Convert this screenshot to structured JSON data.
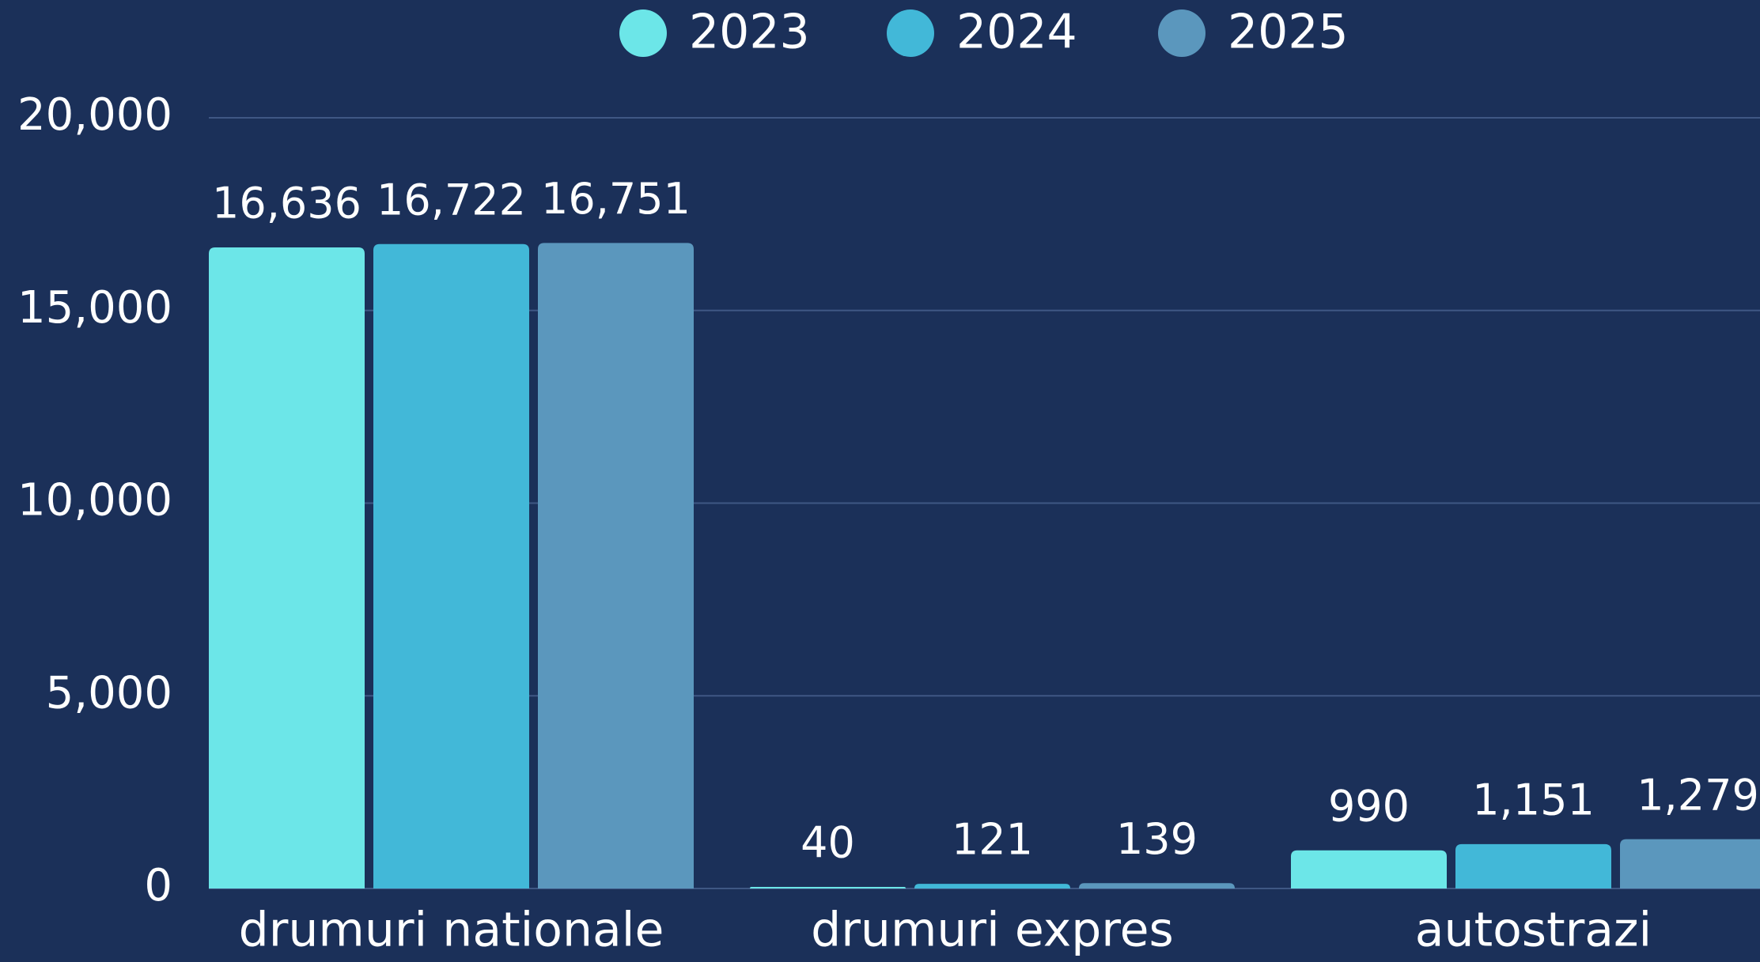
{
  "chart_data": {
    "type": "bar",
    "categories": [
      "drumuri nationale",
      "drumuri expres",
      "autostrazi"
    ],
    "series": [
      {
        "name": "2023",
        "color": "#6ce6e8",
        "values": [
          16636,
          40,
          990
        ],
        "value_labels": [
          "16,636",
          "40",
          "990"
        ]
      },
      {
        "name": "2024",
        "color": "#42b8d8",
        "values": [
          16722,
          121,
          1151
        ],
        "value_labels": [
          "16,722",
          "121",
          "1,151"
        ]
      },
      {
        "name": "2025",
        "color": "#5b97bd",
        "values": [
          16751,
          139,
          1279
        ],
        "value_labels": [
          "16,751",
          "139",
          "1,279"
        ]
      }
    ],
    "ylim": [
      0,
      20000
    ],
    "yticks": [
      0,
      {
        "value": 5000,
        "label": "5,000"
      },
      {
        "value": 10000,
        "label": "10,000"
      },
      {
        "value": 15000,
        "label": "15,000"
      },
      {
        "value": 20000,
        "label": "20,000"
      }
    ],
    "grid": true,
    "legend": "top"
  }
}
